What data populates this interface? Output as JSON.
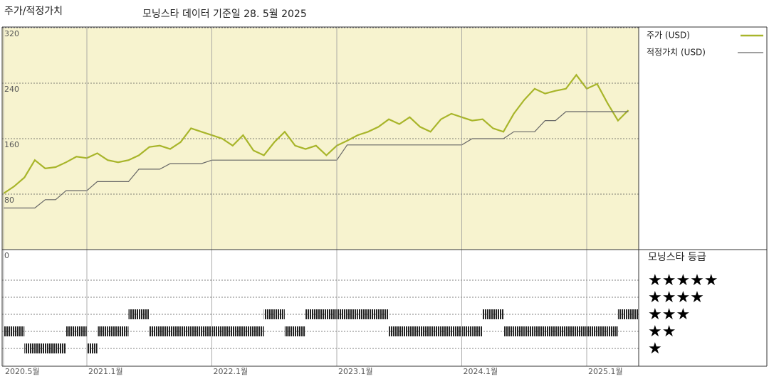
{
  "chart_data": [
    {
      "type": "line",
      "title": "주가/적정가치",
      "subtitle": "모닝스타 데이터 기준일 28. 5월 2025",
      "x": [
        "2020-05",
        "2020-06",
        "2020-07",
        "2020-08",
        "2020-09",
        "2020-10",
        "2020-11",
        "2020-12",
        "2021-01",
        "2021-02",
        "2021-03",
        "2021-04",
        "2021-05",
        "2021-06",
        "2021-07",
        "2021-08",
        "2021-09",
        "2021-10",
        "2021-11",
        "2021-12",
        "2022-01",
        "2022-02",
        "2022-03",
        "2022-04",
        "2022-05",
        "2022-06",
        "2022-07",
        "2022-08",
        "2022-09",
        "2022-10",
        "2022-11",
        "2022-12",
        "2023-01",
        "2023-02",
        "2023-03",
        "2023-04",
        "2023-05",
        "2023-06",
        "2023-07",
        "2023-08",
        "2023-09",
        "2023-10",
        "2023-11",
        "2023-12",
        "2024-01",
        "2024-02",
        "2024-03",
        "2024-04",
        "2024-05",
        "2024-06",
        "2024-07",
        "2024-08",
        "2024-09",
        "2024-10",
        "2024-11",
        "2024-12",
        "2025-01",
        "2025-02",
        "2025-03",
        "2025-04",
        "2025-05"
      ],
      "series": [
        {
          "name": "주가 (USD)",
          "color": "#a8b52a",
          "values": [
            81,
            91,
            104,
            129,
            117,
            119,
            126,
            134,
            132,
            139,
            129,
            126,
            129,
            136,
            148,
            150,
            145,
            155,
            175,
            170,
            165,
            160,
            150,
            165,
            143,
            136,
            155,
            170,
            150,
            145,
            150,
            136,
            150,
            157,
            165,
            170,
            177,
            188,
            181,
            191,
            177,
            170,
            188,
            196,
            191,
            186,
            188,
            175,
            170,
            196,
            216,
            232,
            225,
            229,
            232,
            252,
            232,
            239,
            211,
            186,
            201
          ]
        },
        {
          "name": "적정가치 (USD)",
          "color": "#666666",
          "values": [
            60,
            60,
            60,
            60,
            72,
            72,
            85,
            85,
            85,
            98,
            98,
            98,
            98,
            116,
            116,
            116,
            124,
            124,
            124,
            124,
            129,
            129,
            129,
            129,
            129,
            129,
            129,
            129,
            129,
            129,
            129,
            129,
            129,
            151,
            151,
            151,
            151,
            151,
            151,
            151,
            151,
            151,
            151,
            151,
            151,
            160,
            160,
            160,
            160,
            170,
            170,
            170,
            186,
            186,
            199,
            199,
            199,
            199,
            199,
            199,
            199
          ]
        }
      ],
      "ylim": [
        0,
        320
      ],
      "yticks": [
        0,
        80,
        160,
        240,
        320
      ],
      "grid": true,
      "background": "#f7f3cf"
    },
    {
      "type": "rating",
      "title": "모닝스타 등급",
      "levels": [
        "★",
        "★★",
        "★★★",
        "★★★★",
        "★★★★★"
      ],
      "x": [
        "2020-05",
        "2020-06",
        "2020-07",
        "2020-08",
        "2020-09",
        "2020-10",
        "2020-11",
        "2020-12",
        "2021-01",
        "2021-02",
        "2021-03",
        "2021-04",
        "2021-05",
        "2021-06",
        "2021-07",
        "2021-08",
        "2021-09",
        "2021-10",
        "2021-11",
        "2021-12",
        "2022-01",
        "2022-02",
        "2022-03",
        "2022-04",
        "2022-05",
        "2022-06",
        "2022-07",
        "2022-08",
        "2022-09",
        "2022-10",
        "2022-11",
        "2022-12",
        "2023-01",
        "2023-02",
        "2023-03",
        "2023-04",
        "2023-05",
        "2023-06",
        "2023-07",
        "2023-08",
        "2023-09",
        "2023-10",
        "2023-11",
        "2023-12",
        "2024-01",
        "2024-02",
        "2024-03",
        "2024-04",
        "2024-05",
        "2024-06",
        "2024-07",
        "2024-08",
        "2024-09",
        "2024-10",
        "2024-11",
        "2024-12",
        "2025-01",
        "2025-02",
        "2025-03",
        "2025-04",
        "2025-05"
      ],
      "values": [
        2,
        2,
        1,
        1,
        1,
        1,
        2,
        2,
        1,
        2,
        2,
        2,
        3,
        3,
        2,
        2,
        2,
        2,
        2,
        2,
        2,
        2,
        2,
        2,
        2,
        3,
        3,
        2,
        2,
        3,
        3,
        3,
        3,
        3,
        3,
        3,
        3,
        2,
        2,
        2,
        2,
        2,
        2,
        2,
        2,
        2,
        3,
        3,
        2,
        2,
        2,
        2,
        2,
        2,
        2,
        2,
        2,
        2,
        2,
        3,
        3
      ],
      "color": "#222222",
      "xticks": [
        {
          "value": "2020-05",
          "label": "2020.5월"
        },
        {
          "value": "2021-01",
          "label": "2021.1월"
        },
        {
          "value": "2022-01",
          "label": "2022.1월"
        },
        {
          "value": "2023-01",
          "label": "2023.1월"
        },
        {
          "value": "2024-01",
          "label": "2024.1월"
        },
        {
          "value": "2025-01",
          "label": "2025.1월"
        }
      ]
    }
  ]
}
